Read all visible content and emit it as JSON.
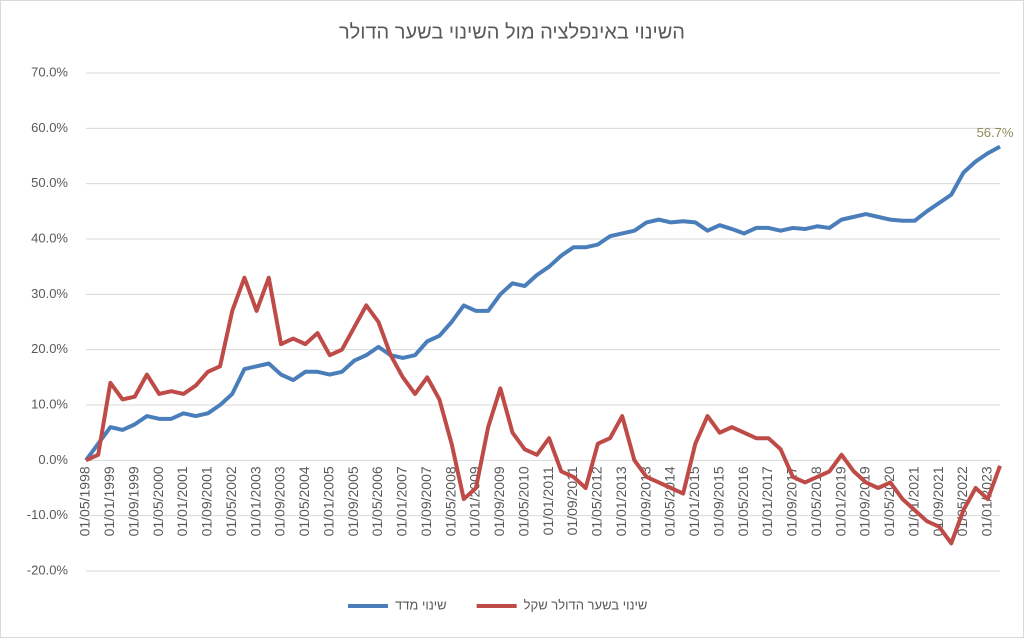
{
  "chart_data": {
    "type": "line",
    "title": "השינוי באינפלציה מול השינוי בשער הדולר",
    "categories": [
      "01/05/1998",
      null,
      "01/01/1999",
      null,
      "01/09/1999",
      null,
      "01/05/2000",
      null,
      "01/01/2001",
      null,
      "01/09/2001",
      null,
      "01/05/2002",
      null,
      "01/01/2003",
      null,
      "01/09/2003",
      null,
      "01/05/2004",
      null,
      "01/01/2005",
      null,
      "01/09/2005",
      null,
      "01/05/2006",
      null,
      "01/01/2007",
      null,
      "01/09/2007",
      null,
      "01/05/2008",
      null,
      "01/01/2009",
      null,
      "01/09/2009",
      null,
      "01/05/2010",
      null,
      "01/01/2011",
      null,
      "01/09/2011",
      null,
      "01/05/2012",
      null,
      "01/01/2013",
      null,
      "01/09/2013",
      null,
      "01/05/2014",
      null,
      "01/01/2015",
      null,
      "01/09/2015",
      null,
      "01/05/2016",
      null,
      "01/01/2017",
      null,
      "01/09/2017",
      null,
      "01/05/2018",
      null,
      "01/01/2019",
      null,
      "01/09/2019",
      null,
      "01/05/2020",
      null,
      "01/01/2021",
      null,
      "01/09/2021",
      null,
      "01/05/2022",
      null,
      "01/01/2023",
      null
    ],
    "series": [
      {
        "name": "שינוי מדד",
        "color": "#4a7ebb",
        "values": [
          0,
          3,
          6,
          5.5,
          6.5,
          8,
          7.5,
          7.5,
          8.5,
          8,
          8.5,
          10,
          12,
          16.5,
          17,
          17.5,
          15.5,
          14.5,
          16,
          16,
          15.5,
          16,
          18,
          19,
          20.5,
          19,
          18.5,
          19,
          21.5,
          22.5,
          25,
          28,
          27,
          27,
          30,
          32,
          31.5,
          33.5,
          35,
          37,
          38.5,
          38.5,
          39,
          40.5,
          41,
          41.5,
          43,
          43.5,
          43,
          43.2,
          43,
          41.5,
          42.5,
          41.8,
          41,
          42,
          42,
          41.5,
          42,
          41.8,
          42.3,
          42,
          43.5,
          44,
          44.5,
          44,
          43.5,
          43.3,
          43.3,
          45,
          46.5,
          48,
          52,
          54,
          55.5,
          56.7
        ],
        "value_labels": [
          null,
          null,
          null,
          null,
          null,
          null,
          null,
          null,
          null,
          null,
          null,
          null,
          null,
          null,
          null,
          null,
          null,
          null,
          null,
          null,
          null,
          null,
          null,
          null,
          null,
          null,
          null,
          null,
          null,
          null,
          null,
          null,
          null,
          null,
          null,
          null,
          null,
          null,
          null,
          null,
          null,
          null,
          null,
          null,
          null,
          null,
          null,
          null,
          null,
          null,
          null,
          null,
          null,
          null,
          null,
          null,
          null,
          null,
          null,
          null,
          null,
          null,
          null,
          null,
          null,
          null,
          null,
          null,
          null,
          null,
          null,
          null,
          null,
          null,
          null,
          "56.7%"
        ]
      },
      {
        "name": "שינוי בשער הדולר שקל",
        "color": "#be4b48",
        "values": [
          0,
          1,
          14,
          11,
          11.5,
          15.5,
          12,
          12.5,
          12,
          13.5,
          16,
          17,
          27,
          33,
          27,
          33,
          21,
          22,
          21,
          23,
          19,
          20,
          24,
          28,
          25,
          19,
          15,
          12,
          15,
          11,
          3,
          -7,
          -5,
          6,
          13,
          5,
          2,
          1,
          4,
          -2,
          -3,
          -5,
          3,
          4,
          8,
          0,
          -3,
          -4,
          -5,
          -6,
          3,
          8,
          5,
          6,
          5,
          4,
          4,
          2,
          -3,
          -4,
          -3,
          -2,
          1,
          -2,
          -4,
          -5,
          -4,
          -7,
          -9,
          -11,
          -12,
          -15,
          -9,
          -5,
          -7,
          -1
        ]
      }
    ],
    "ylim": [
      -20,
      70
    ],
    "yticks": [
      {
        "value": -20,
        "label": "-20.0%"
      },
      {
        "value": -10,
        "label": "-10.0%"
      },
      {
        "value": 0,
        "label": "0.0%"
      },
      {
        "value": 10,
        "label": "10.0%"
      },
      {
        "value": 20,
        "label": "20.0%"
      },
      {
        "value": 30,
        "label": "30.0%"
      },
      {
        "value": 40,
        "label": "40.0%"
      },
      {
        "value": 50,
        "label": "50.0%"
      },
      {
        "value": 60,
        "label": "60.0%"
      },
      {
        "value": 70,
        "label": "70.0%"
      }
    ],
    "grid": true,
    "legend": "bottom"
  }
}
